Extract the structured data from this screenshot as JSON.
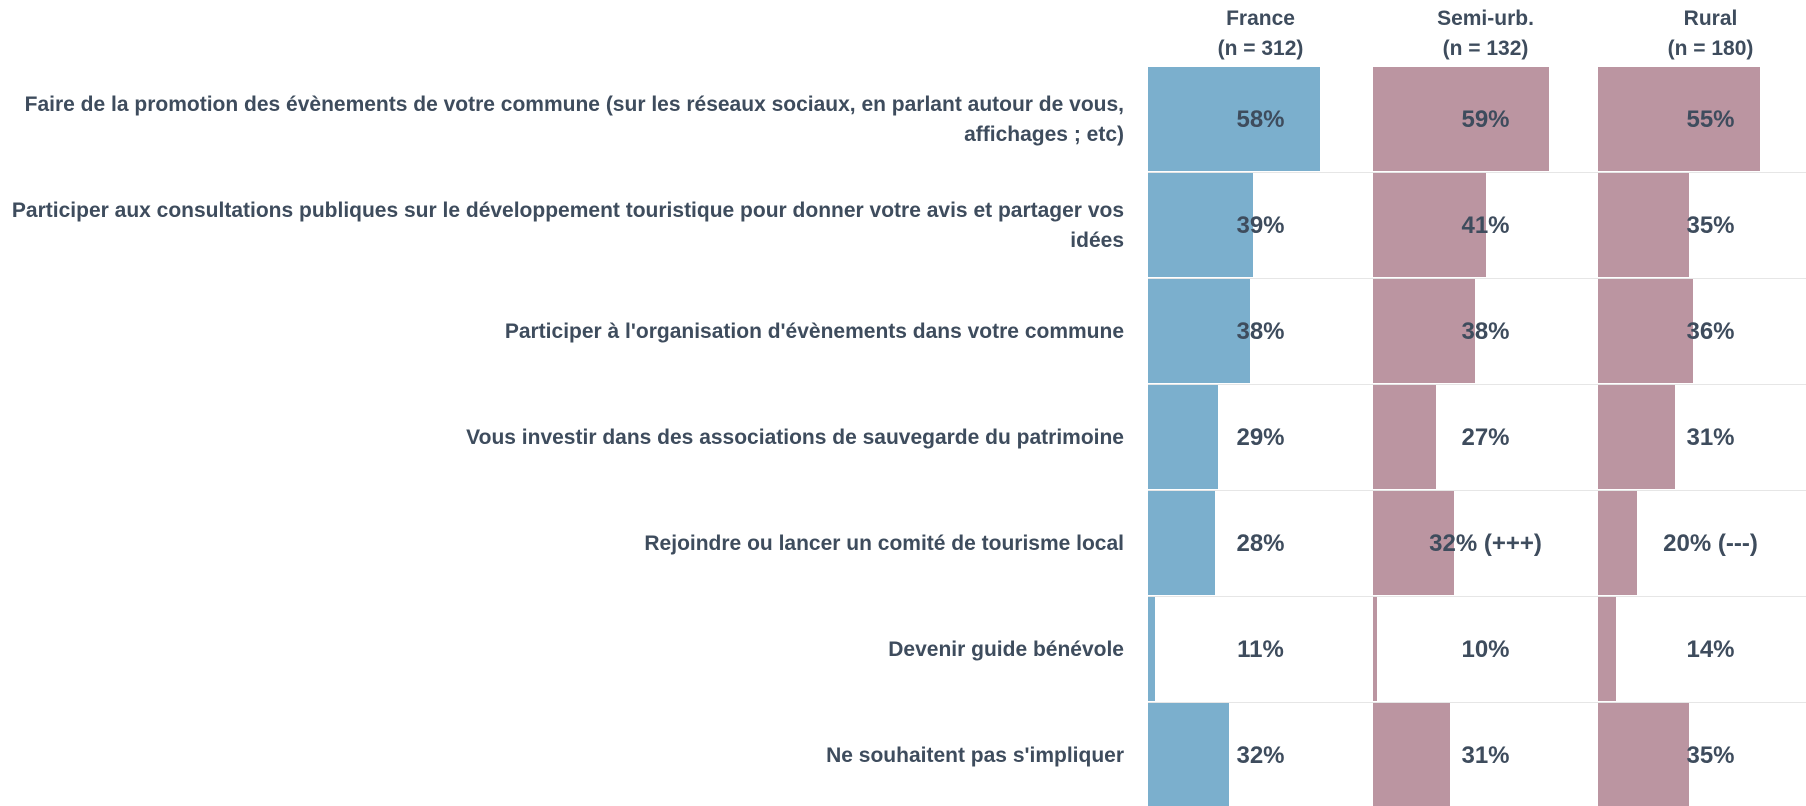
{
  "chart_data": {
    "type": "bar",
    "categories": [
      "Faire de la promotion des évènements de votre commune (sur les réseaux sociaux, en parlant autour de vous, affichages ; etc)",
      "Participer aux consultations publiques sur le développement touristique pour donner votre avis et partager vos idées",
      "Participer à l'organisation d'évènements dans votre commune",
      "Vous investir dans des associations de sauvegarde du patrimoine",
      "Rejoindre ou lancer un comité de tourisme local",
      "Devenir guide bénévole",
      "Ne souhaitent pas s'impliquer"
    ],
    "series": [
      {
        "name": "France",
        "sample": "(n = 312)",
        "color": "#7bafcd",
        "values": [
          58,
          39,
          38,
          29,
          28,
          11,
          32
        ],
        "value_labels": [
          "58%",
          "39%",
          "38%",
          "29%",
          "28%",
          "11%",
          "32%"
        ]
      },
      {
        "name": "Semi-urb.",
        "sample": "(n = 132)",
        "color": "#bb95a1",
        "values": [
          59,
          41,
          38,
          27,
          32,
          10,
          31
        ],
        "value_labels": [
          "59%",
          "41%",
          "38%",
          "27%",
          "32% (+++)",
          "10%",
          "31%"
        ]
      },
      {
        "name": "Rural",
        "sample": "(n = 180)",
        "color": "#bb95a1",
        "values": [
          55,
          35,
          36,
          31,
          20,
          14,
          35
        ],
        "value_labels": [
          "55%",
          "35%",
          "36%",
          "31%",
          "20% (---)",
          "14%",
          "35%"
        ]
      }
    ],
    "xlim": [
      9,
      73
    ]
  }
}
